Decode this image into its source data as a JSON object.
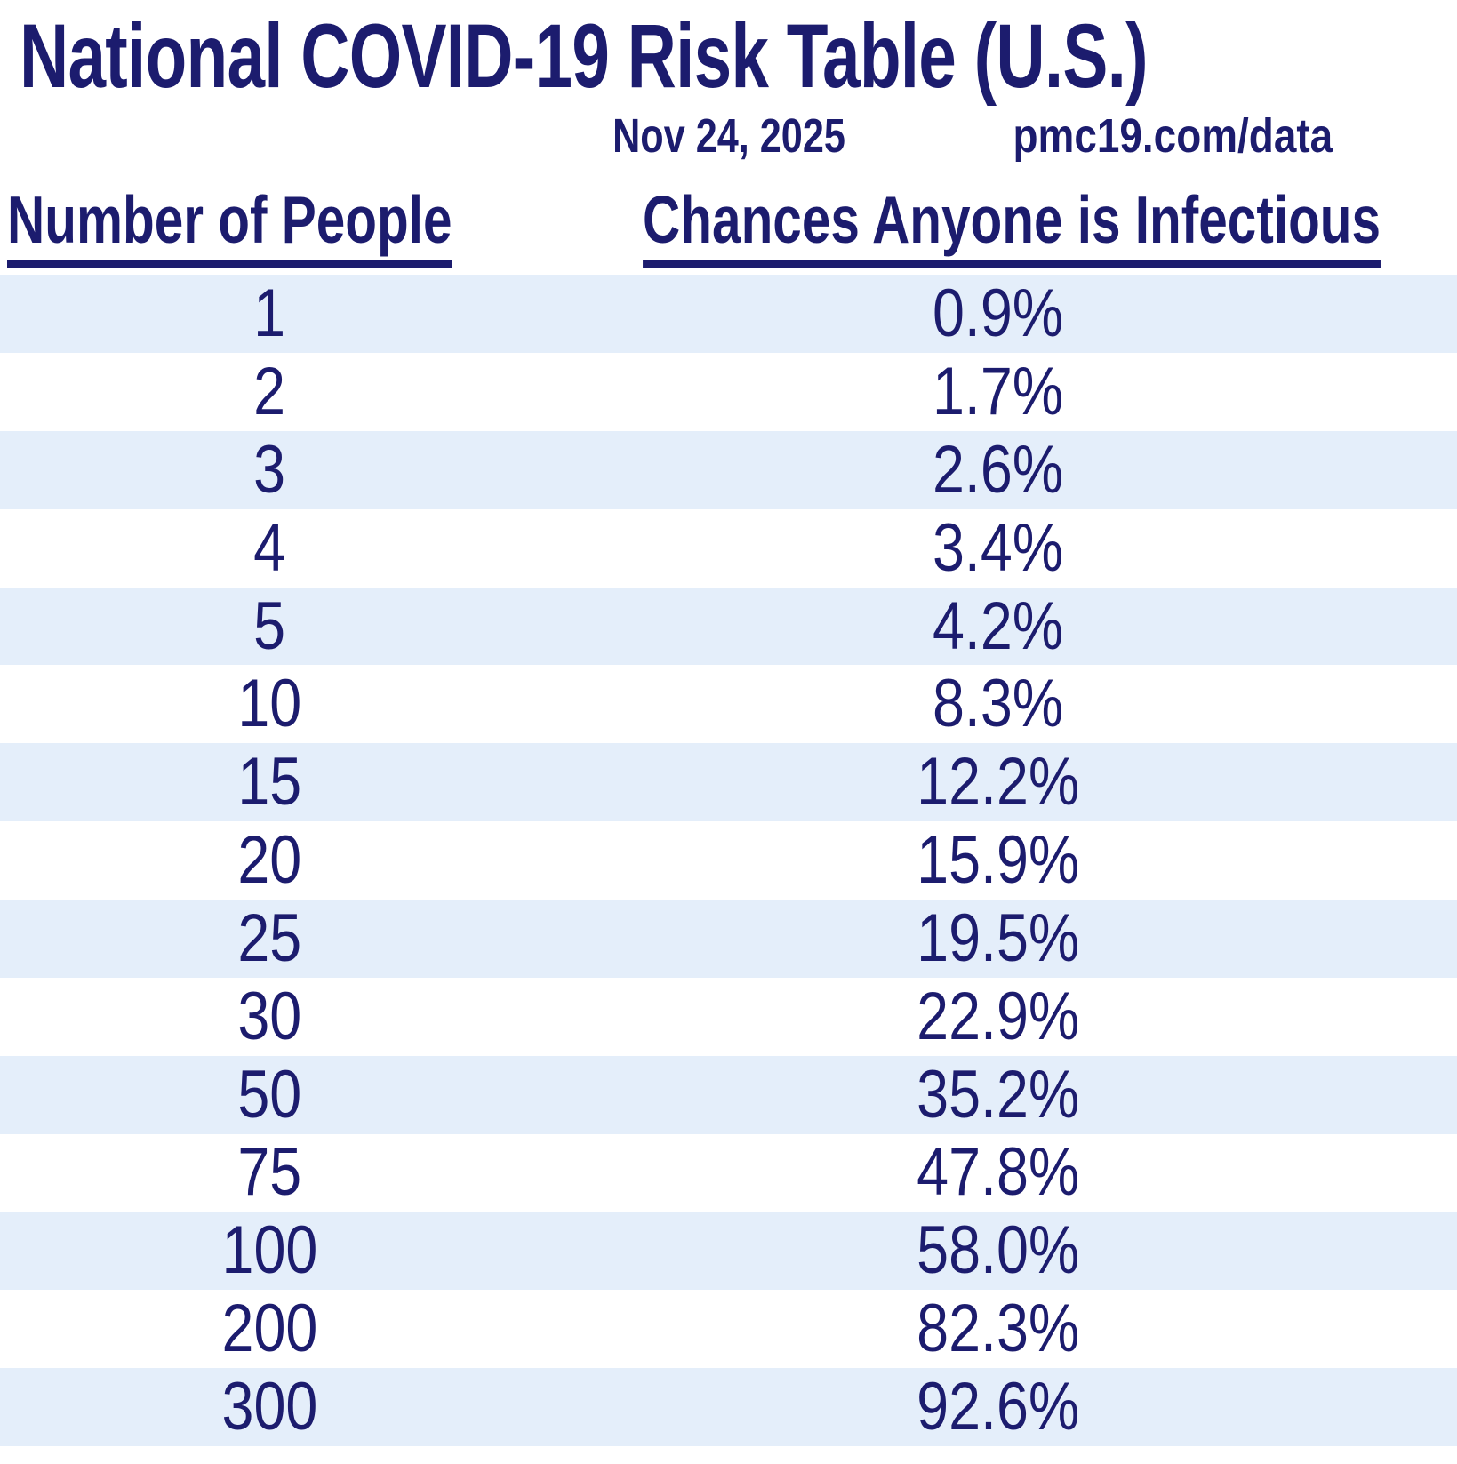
{
  "header": {
    "title": "National COVID-19 Risk Table (U.S.)",
    "date": "Nov 24, 2025",
    "site": "pmc19.com/data"
  },
  "table": {
    "columns": [
      "Number of People",
      "Chances Anyone is Infectious"
    ],
    "rows": [
      {
        "people": "1",
        "chance": "0.9%"
      },
      {
        "people": "2",
        "chance": "1.7%"
      },
      {
        "people": "3",
        "chance": "2.6%"
      },
      {
        "people": "4",
        "chance": "3.4%"
      },
      {
        "people": "5",
        "chance": "4.2%"
      },
      {
        "people": "10",
        "chance": "8.3%"
      },
      {
        "people": "15",
        "chance": "12.2%"
      },
      {
        "people": "20",
        "chance": "15.9%"
      },
      {
        "people": "25",
        "chance": "19.5%"
      },
      {
        "people": "30",
        "chance": "22.9%"
      },
      {
        "people": "50",
        "chance": "35.2%"
      },
      {
        "people": "75",
        "chance": "47.8%"
      },
      {
        "people": "100",
        "chance": "58.0%"
      },
      {
        "people": "200",
        "chance": "82.3%"
      },
      {
        "people": "300",
        "chance": "92.6%"
      }
    ]
  },
  "colors": {
    "text_navy": "#1c1c6e",
    "row_alt_blue": "#e4eefa",
    "row_white": "#ffffff"
  },
  "chart_data": {
    "type": "table",
    "title": "National COVID-19 Risk Table (U.S.)",
    "date": "Nov 24, 2025",
    "source": "pmc19.com/data",
    "columns": [
      "Number of People",
      "Chances Anyone is Infectious"
    ],
    "x": [
      1,
      2,
      3,
      4,
      5,
      10,
      15,
      20,
      25,
      30,
      50,
      75,
      100,
      200,
      300
    ],
    "values_percent": [
      0.9,
      1.7,
      2.6,
      3.4,
      4.2,
      8.3,
      12.2,
      15.9,
      19.5,
      22.9,
      35.2,
      47.8,
      58.0,
      82.3,
      92.6
    ]
  }
}
